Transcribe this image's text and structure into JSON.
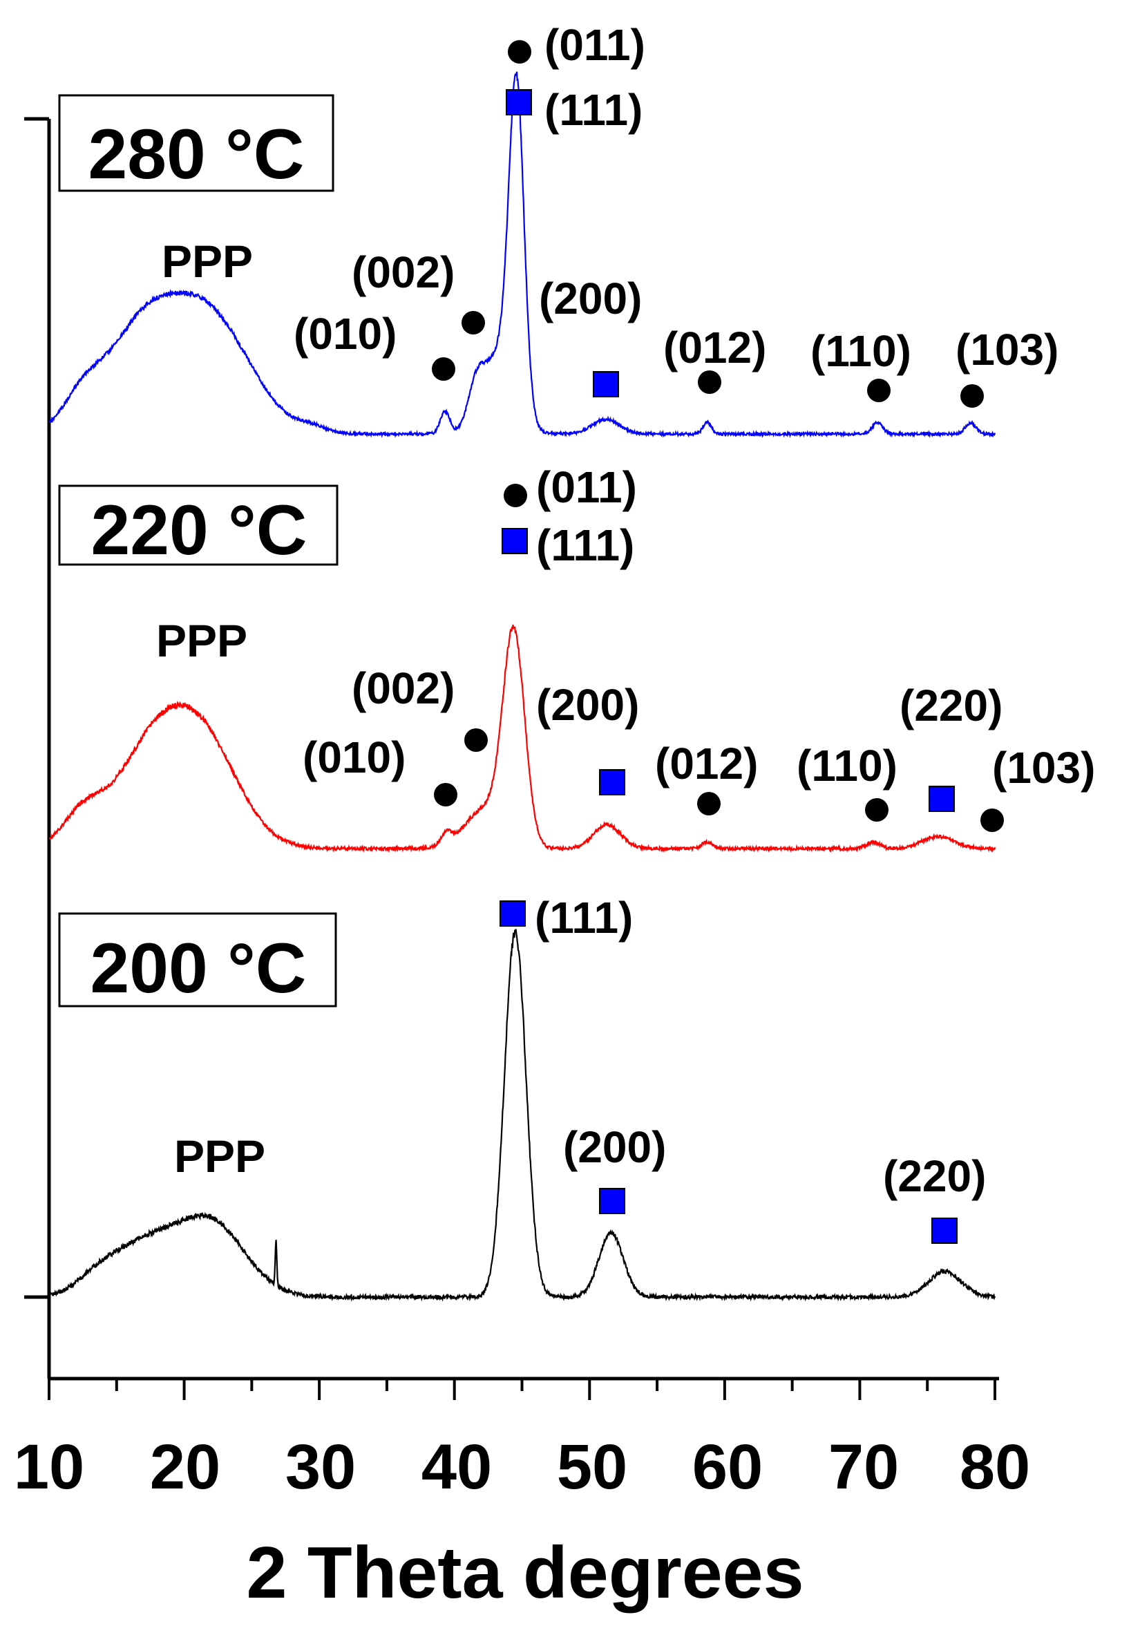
{
  "chart_data": {
    "type": "line",
    "xlabel": "2 Theta degrees",
    "ylabel": "",
    "xlim": [
      10,
      80
    ],
    "x_ticks": [
      "10",
      "20",
      "30",
      "40",
      "50",
      "60",
      "70",
      "80"
    ],
    "grid": false,
    "legend": "none",
    "series": [
      {
        "label": "280 °C",
        "color": "#0000ff",
        "baseline": 10,
        "peaks": [
          {
            "x": 12.5,
            "h": 3.5,
            "w": 1.5
          },
          {
            "x": 16.5,
            "h": 9.0,
            "w": 2.5
          },
          {
            "x": 21.5,
            "h": 13.5,
            "w": 3.2
          },
          {
            "x": 29.5,
            "h": 0.6,
            "w": 1.0
          },
          {
            "x": 39.3,
            "h": 2.5,
            "w": 0.35
          },
          {
            "x": 41.6,
            "h": 4.0,
            "w": 0.6
          },
          {
            "x": 43.4,
            "h": 9.0,
            "w": 1.2
          },
          {
            "x": 44.6,
            "h": 34.0,
            "w": 0.55
          },
          {
            "x": 51.2,
            "h": 1.6,
            "w": 1.0
          },
          {
            "x": 58.7,
            "h": 1.3,
            "w": 0.3
          },
          {
            "x": 71.3,
            "h": 1.2,
            "w": 0.4
          },
          {
            "x": 78.2,
            "h": 1.2,
            "w": 0.4
          }
        ]
      },
      {
        "label": "220 °C",
        "color": "#ff0000",
        "baseline": 10,
        "peaks": [
          {
            "x": 12.5,
            "h": 4.0,
            "w": 1.5
          },
          {
            "x": 17.0,
            "h": 9.0,
            "w": 2.5
          },
          {
            "x": 21.0,
            "h": 14.5,
            "w": 2.8
          },
          {
            "x": 39.4,
            "h": 1.5,
            "w": 0.4
          },
          {
            "x": 42.3,
            "h": 5.0,
            "w": 1.5
          },
          {
            "x": 44.4,
            "h": 26.0,
            "w": 0.8
          },
          {
            "x": 51.3,
            "h": 3.0,
            "w": 1.0
          },
          {
            "x": 58.7,
            "h": 0.8,
            "w": 0.4
          },
          {
            "x": 71.0,
            "h": 0.8,
            "w": 0.5
          },
          {
            "x": 75.8,
            "h": 1.5,
            "w": 1.2
          }
        ]
      },
      {
        "label": "200 °C",
        "color": "#000000",
        "baseline": 10,
        "peaks": [
          {
            "x": 13.5,
            "h": 1.5,
            "w": 1.5
          },
          {
            "x": 17.0,
            "h": 5.5,
            "w": 2.5
          },
          {
            "x": 22.0,
            "h": 8.0,
            "w": 2.5
          },
          {
            "x": 26.8,
            "h": 5.0,
            "w": 0.06
          },
          {
            "x": 44.5,
            "h": 40.0,
            "w": 0.8
          },
          {
            "x": 51.6,
            "h": 7.0,
            "w": 0.9
          },
          {
            "x": 76.3,
            "h": 2.8,
            "w": 1.2
          }
        ]
      }
    ],
    "annotations": {
      "panel_280": {
        "title": "280 °C",
        "ppp": "PPP",
        "labels": [
          "(011)",
          "(111)",
          "(002)",
          "(010)",
          "(200)",
          "(012)",
          "(110)",
          "(103)"
        ]
      },
      "panel_220": {
        "title": "220 °C",
        "ppp": "PPP",
        "labels": [
          "(011)",
          "(111)",
          "(002)",
          "(010)",
          "(200)",
          "(012)",
          "(110)",
          "(220)",
          "(103)"
        ]
      },
      "panel_200": {
        "title": "200 °C",
        "ppp": "PPP",
        "labels": [
          "(111)",
          "(200)",
          "(220)"
        ]
      }
    },
    "marker_legend": {
      "circle_color": "#000000",
      "square_color": "#0000ff"
    }
  }
}
